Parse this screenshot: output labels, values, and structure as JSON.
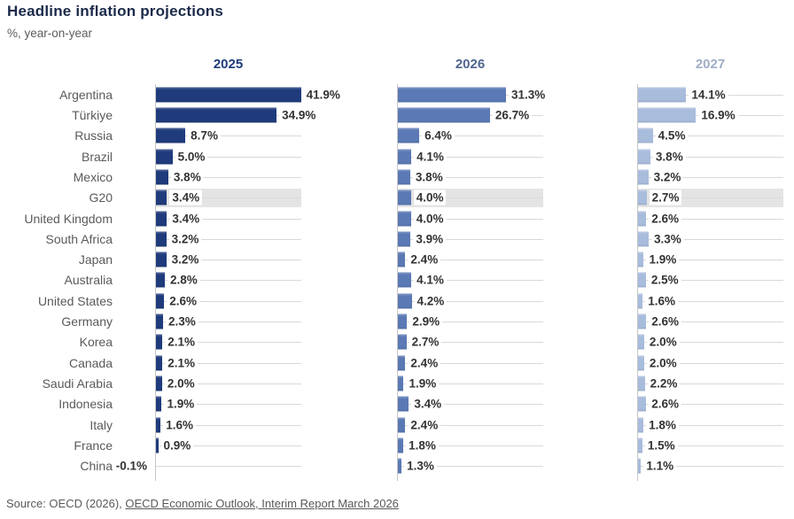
{
  "header": {
    "title": "Headline inflation projections",
    "subtitle": "%, year-on-year"
  },
  "source": {
    "prefix": "Source: OECD (2026), ",
    "link_text": "OECD Economic Outlook, Interim Report March 2026"
  },
  "chart_data": {
    "type": "bar",
    "orientation": "horizontal",
    "value_suffix": "%",
    "xlim": [
      0,
      42
    ],
    "grid": true,
    "highlight_category": "G20",
    "highlight_color": "#e4e4e4",
    "categories": [
      "Argentina",
      "Türkiye",
      "Russia",
      "Brazil",
      "Mexico",
      "G20",
      "United Kingdom",
      "South Africa",
      "Japan",
      "Australia",
      "United States",
      "Germany",
      "Korea",
      "Canada",
      "Saudi Arabia",
      "Indonesia",
      "Italy",
      "France",
      "China"
    ],
    "series": [
      {
        "name": "2025",
        "color": "#1f3b7c",
        "header_color": "#1f3b7c",
        "values": [
          41.9,
          34.9,
          8.7,
          5.0,
          3.8,
          3.4,
          3.4,
          3.2,
          3.2,
          2.8,
          2.6,
          2.3,
          2.1,
          2.1,
          2.0,
          1.9,
          1.6,
          0.9,
          -0.1
        ]
      },
      {
        "name": "2026",
        "color": "#5b79b4",
        "header_color": "#4f6590",
        "values": [
          31.3,
          26.7,
          6.4,
          4.1,
          3.8,
          4.0,
          4.0,
          3.9,
          2.4,
          4.1,
          4.2,
          2.9,
          2.7,
          2.4,
          1.9,
          3.4,
          2.4,
          1.8,
          1.3
        ]
      },
      {
        "name": "2027",
        "color": "#a8bcdc",
        "header_color": "#9fadc6",
        "values": [
          14.1,
          16.9,
          4.5,
          3.8,
          3.2,
          2.7,
          2.6,
          3.3,
          1.9,
          2.5,
          1.6,
          2.6,
          2.0,
          2.0,
          2.2,
          2.6,
          1.8,
          1.5,
          1.1
        ]
      }
    ]
  }
}
